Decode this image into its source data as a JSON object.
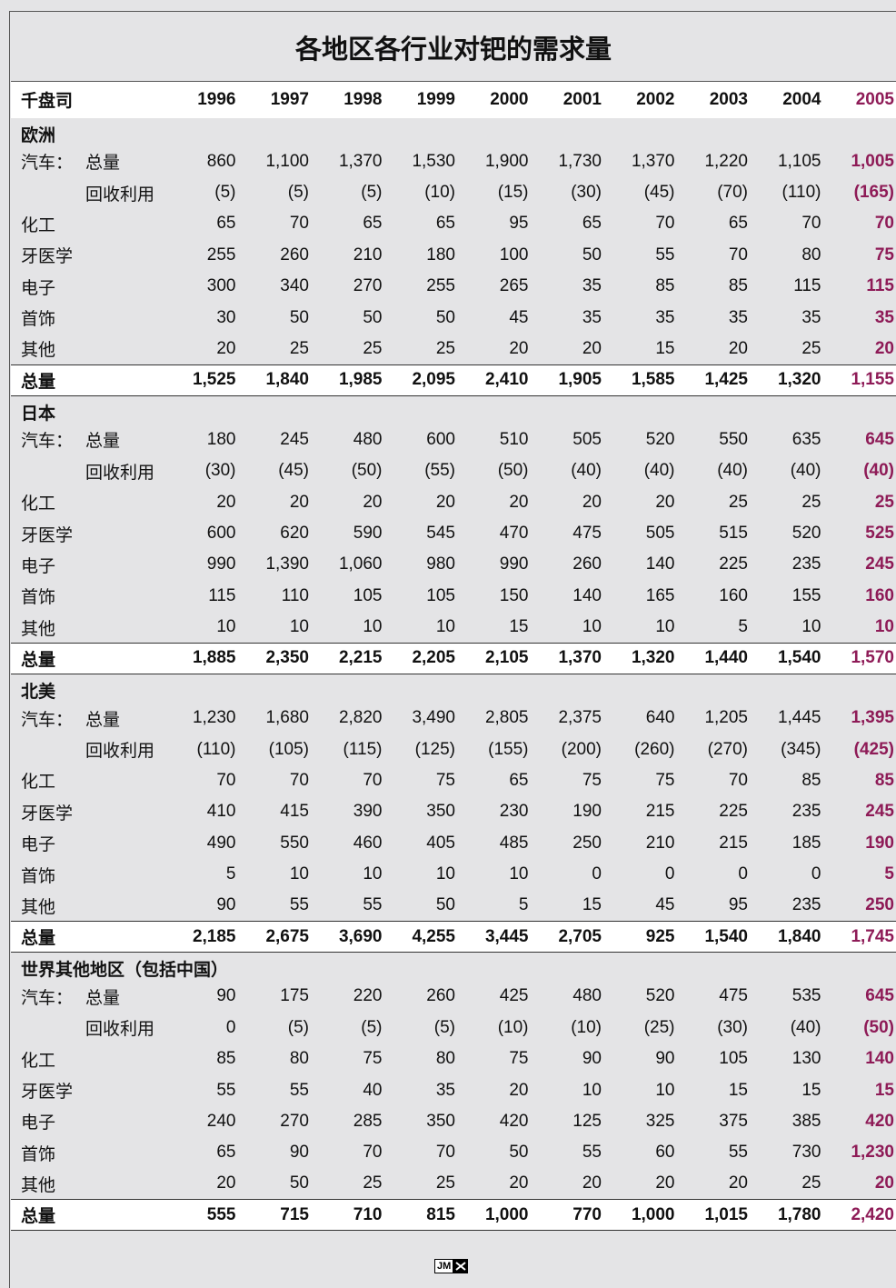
{
  "title": "各地区各行业对钯的需求量",
  "table": {
    "unit": "千盘司",
    "years": [
      "1996",
      "1997",
      "1998",
      "1999",
      "2000",
      "2001",
      "2002",
      "2003",
      "2004",
      "2005"
    ],
    "sections": [
      {
        "name": "欧洲",
        "rows": [
          {
            "label": "汽车：",
            "sublabel": "总量",
            "values": [
              "860",
              "1,100",
              "1,370",
              "1,530",
              "1,900",
              "1,730",
              "1,370",
              "1,220",
              "1,105",
              "1,005"
            ]
          },
          {
            "sublabel": "回收利用",
            "values": [
              "(5)",
              "(5)",
              "(5)",
              "(10)",
              "(15)",
              "(30)",
              "(45)",
              "(70)",
              "(110)",
              "(165)"
            ]
          },
          {
            "label": "化工",
            "values": [
              "65",
              "70",
              "65",
              "65",
              "95",
              "65",
              "70",
              "65",
              "70",
              "70"
            ]
          },
          {
            "label": "牙医学",
            "values": [
              "255",
              "260",
              "210",
              "180",
              "100",
              "50",
              "55",
              "70",
              "80",
              "75"
            ]
          },
          {
            "label": "电子",
            "values": [
              "300",
              "340",
              "270",
              "255",
              "265",
              "35",
              "85",
              "85",
              "115",
              "115"
            ]
          },
          {
            "label": "首饰",
            "values": [
              "30",
              "50",
              "50",
              "50",
              "45",
              "35",
              "35",
              "35",
              "35",
              "35"
            ]
          },
          {
            "label": "其他",
            "values": [
              "20",
              "25",
              "25",
              "25",
              "20",
              "20",
              "15",
              "20",
              "25",
              "20"
            ]
          }
        ],
        "total": {
          "label": "总量",
          "values": [
            "1,525",
            "1,840",
            "1,985",
            "2,095",
            "2,410",
            "1,905",
            "1,585",
            "1,425",
            "1,320",
            "1,155"
          ]
        }
      },
      {
        "name": "日本",
        "rows": [
          {
            "label": "汽车：",
            "sublabel": "总量",
            "values": [
              "180",
              "245",
              "480",
              "600",
              "510",
              "505",
              "520",
              "550",
              "635",
              "645"
            ]
          },
          {
            "sublabel": "回收利用",
            "values": [
              "(30)",
              "(45)",
              "(50)",
              "(55)",
              "(50)",
              "(40)",
              "(40)",
              "(40)",
              "(40)",
              "(40)"
            ]
          },
          {
            "label": "化工",
            "values": [
              "20",
              "20",
              "20",
              "20",
              "20",
              "20",
              "20",
              "25",
              "25",
              "25"
            ]
          },
          {
            "label": "牙医学",
            "values": [
              "600",
              "620",
              "590",
              "545",
              "470",
              "475",
              "505",
              "515",
              "520",
              "525"
            ]
          },
          {
            "label": "电子",
            "values": [
              "990",
              "1,390",
              "1,060",
              "980",
              "990",
              "260",
              "140",
              "225",
              "235",
              "245"
            ]
          },
          {
            "label": "首饰",
            "values": [
              "115",
              "110",
              "105",
              "105",
              "150",
              "140",
              "165",
              "160",
              "155",
              "160"
            ]
          },
          {
            "label": "其他",
            "values": [
              "10",
              "10",
              "10",
              "10",
              "15",
              "10",
              "10",
              "5",
              "10",
              "10"
            ]
          }
        ],
        "total": {
          "label": "总量",
          "values": [
            "1,885",
            "2,350",
            "2,215",
            "2,205",
            "2,105",
            "1,370",
            "1,320",
            "1,440",
            "1,540",
            "1,570"
          ]
        }
      },
      {
        "name": "北美",
        "rows": [
          {
            "label": "汽车：",
            "sublabel": "总量",
            "values": [
              "1,230",
              "1,680",
              "2,820",
              "3,490",
              "2,805",
              "2,375",
              "640",
              "1,205",
              "1,445",
              "1,395"
            ]
          },
          {
            "sublabel": "回收利用",
            "values": [
              "(110)",
              "(105)",
              "(115)",
              "(125)",
              "(155)",
              "(200)",
              "(260)",
              "(270)",
              "(345)",
              "(425)"
            ]
          },
          {
            "label": "化工",
            "values": [
              "70",
              "70",
              "70",
              "75",
              "65",
              "75",
              "75",
              "70",
              "85",
              "85"
            ]
          },
          {
            "label": "牙医学",
            "values": [
              "410",
              "415",
              "390",
              "350",
              "230",
              "190",
              "215",
              "225",
              "235",
              "245"
            ]
          },
          {
            "label": "电子",
            "values": [
              "490",
              "550",
              "460",
              "405",
              "485",
              "250",
              "210",
              "215",
              "185",
              "190"
            ]
          },
          {
            "label": "首饰",
            "values": [
              "5",
              "10",
              "10",
              "10",
              "10",
              "0",
              "0",
              "0",
              "0",
              "5"
            ]
          },
          {
            "label": "其他",
            "values": [
              "90",
              "55",
              "55",
              "50",
              "5",
              "15",
              "45",
              "95",
              "235",
              "250"
            ]
          }
        ],
        "total": {
          "label": "总量",
          "values": [
            "2,185",
            "2,675",
            "3,690",
            "4,255",
            "3,445",
            "2,705",
            "925",
            "1,540",
            "1,840",
            "1,745"
          ]
        }
      },
      {
        "name": "世界其他地区（包括中国）",
        "rows": [
          {
            "label": "汽车：",
            "sublabel": "总量",
            "values": [
              "90",
              "175",
              "220",
              "260",
              "425",
              "480",
              "520",
              "475",
              "535",
              "645"
            ]
          },
          {
            "sublabel": "回收利用",
            "values": [
              "0",
              "(5)",
              "(5)",
              "(5)",
              "(10)",
              "(10)",
              "(25)",
              "(30)",
              "(40)",
              "(50)"
            ]
          },
          {
            "label": "化工",
            "values": [
              "85",
              "80",
              "75",
              "80",
              "75",
              "90",
              "90",
              "105",
              "130",
              "140"
            ]
          },
          {
            "label": "牙医学",
            "values": [
              "55",
              "55",
              "40",
              "35",
              "20",
              "10",
              "10",
              "15",
              "15",
              "15"
            ]
          },
          {
            "label": "电子",
            "values": [
              "240",
              "270",
              "285",
              "350",
              "420",
              "125",
              "325",
              "375",
              "385",
              "420"
            ]
          },
          {
            "label": "首饰",
            "values": [
              "65",
              "90",
              "70",
              "70",
              "50",
              "55",
              "60",
              "55",
              "730",
              "1,230"
            ]
          },
          {
            "label": "其他",
            "values": [
              "20",
              "50",
              "25",
              "25",
              "20",
              "20",
              "20",
              "20",
              "25",
              "20"
            ]
          }
        ],
        "total": {
          "label": "总量",
          "values": [
            "555",
            "715",
            "710",
            "815",
            "1,000",
            "770",
            "1,000",
            "1,015",
            "1,780",
            "2,420"
          ]
        }
      }
    ]
  },
  "footer": {
    "logo": "JM"
  }
}
